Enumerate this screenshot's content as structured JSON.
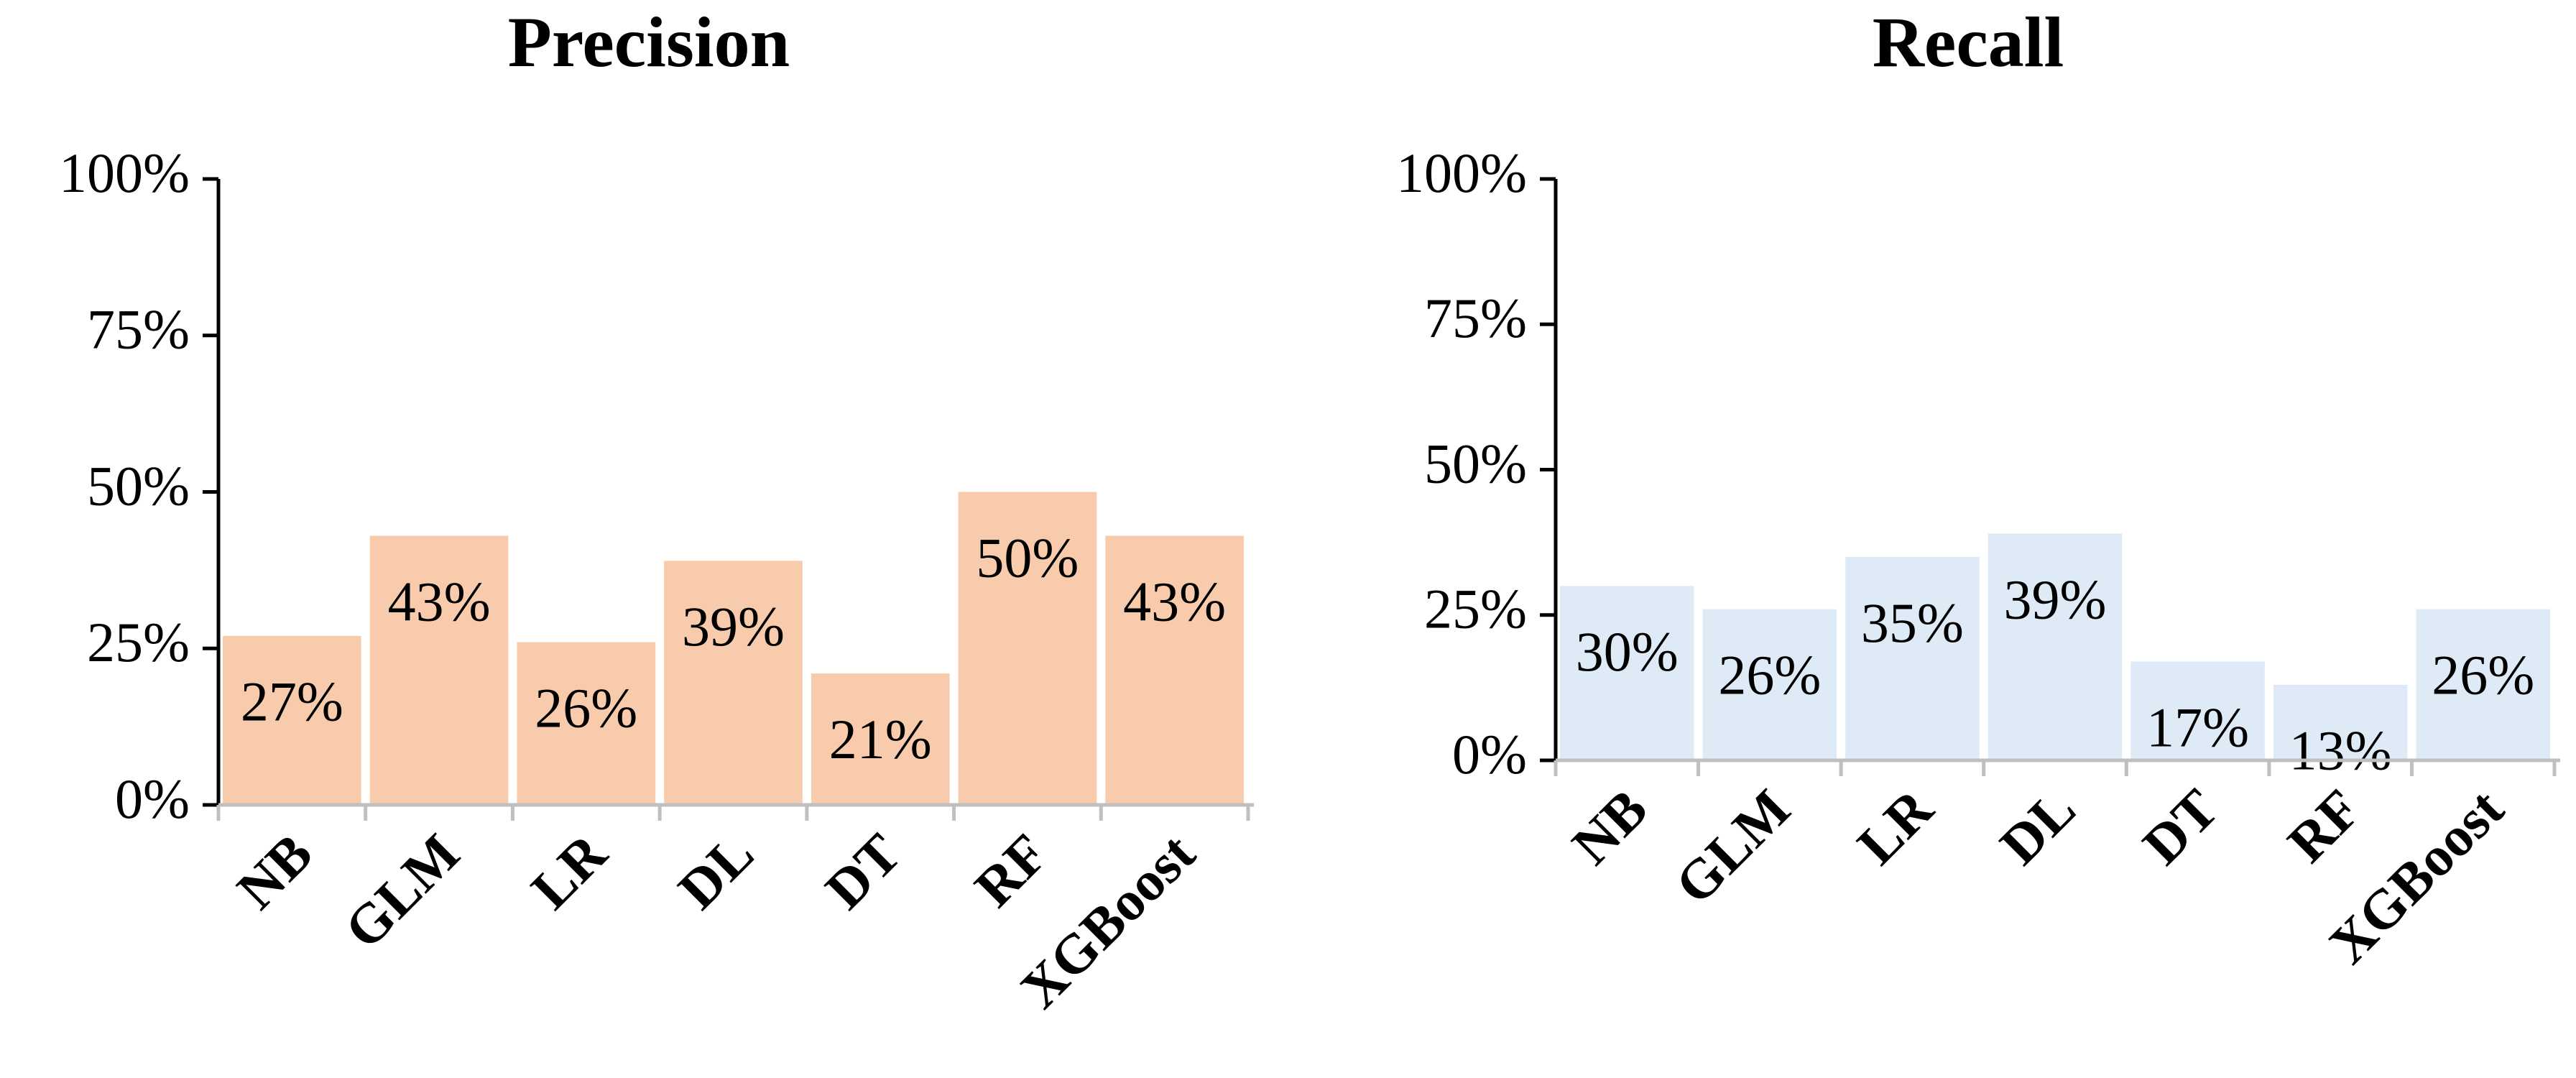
{
  "chart_data": [
    {
      "type": "bar",
      "title": "Precision",
      "categories": [
        "NB",
        "GLM",
        "LR",
        "DL",
        "DT",
        "RF",
        "XGBoost"
      ],
      "values": [
        27,
        43,
        26,
        39,
        21,
        50,
        43
      ],
      "value_labels": [
        "27%",
        "43%",
        "26%",
        "39%",
        "21%",
        "50%",
        "43%"
      ],
      "color": "#f8cbad",
      "ylim": [
        0,
        100
      ],
      "yticks": [
        {
          "value": 0,
          "label": "0%"
        },
        {
          "value": 25,
          "label": "25%"
        },
        {
          "value": 50,
          "label": "50%"
        },
        {
          "value": 75,
          "label": "75%"
        },
        {
          "value": 100,
          "label": "100%"
        }
      ]
    },
    {
      "type": "bar",
      "title": "Recall",
      "categories": [
        "NB",
        "GLM",
        "LR",
        "DL",
        "DT",
        "RF",
        "XGBoost"
      ],
      "values": [
        30,
        26,
        35,
        39,
        17,
        13,
        26
      ],
      "value_labels": [
        "30%",
        "26%",
        "35%",
        "39%",
        "17%",
        "13%",
        "26%"
      ],
      "color": "#deebf7",
      "ylim": [
        0,
        100
      ],
      "yticks": [
        {
          "value": 0,
          "label": "0%"
        },
        {
          "value": 25,
          "label": "25%"
        },
        {
          "value": 50,
          "label": "50%"
        },
        {
          "value": 75,
          "label": "75%"
        },
        {
          "value": 100,
          "label": "100%"
        }
      ]
    }
  ]
}
